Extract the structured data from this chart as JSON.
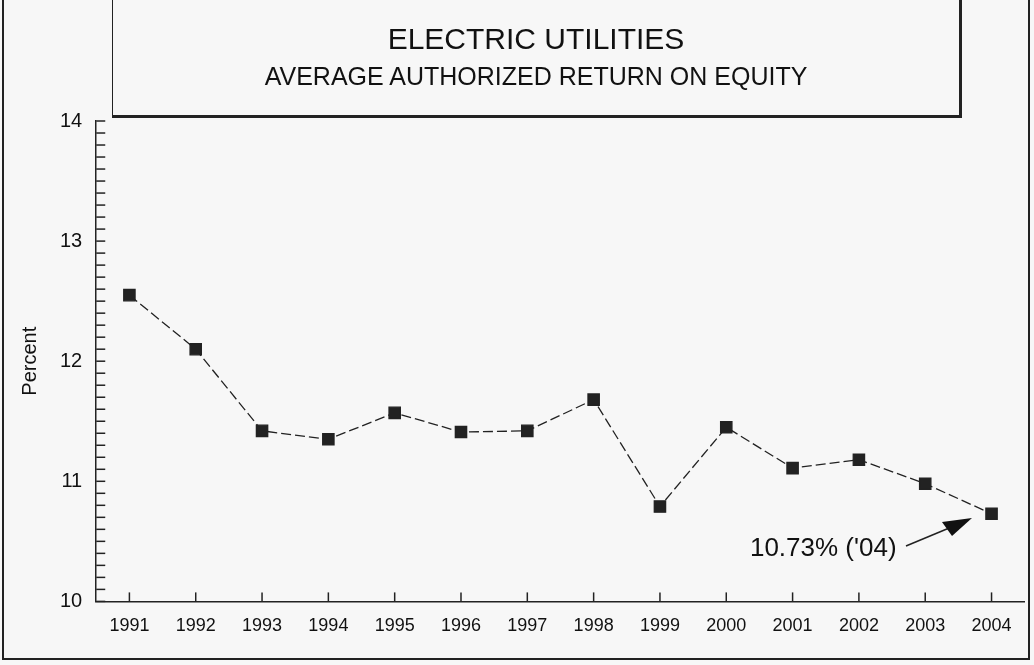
{
  "chart_data": {
    "type": "line",
    "title": "ELECTRIC UTILITIES",
    "subtitle": "AVERAGE AUTHORIZED RETURN ON EQUITY",
    "ylabel": "Percent",
    "categories": [
      "1991",
      "1992",
      "1993",
      "1994",
      "1995",
      "1996",
      "1997",
      "1998",
      "1999",
      "2000",
      "2001",
      "2002",
      "2003",
      "2004"
    ],
    "values": [
      12.55,
      12.1,
      11.42,
      11.35,
      11.57,
      11.41,
      11.42,
      11.68,
      10.79,
      11.45,
      11.11,
      11.18,
      10.98,
      10.73
    ],
    "color": "#222222",
    "marker": "square",
    "line_style": "dashed",
    "grid": false,
    "legend": false,
    "ylim": [
      10,
      14
    ],
    "yticks": [
      10,
      11,
      12,
      13,
      14
    ],
    "annotations": [
      "10.73% ('04)"
    ]
  }
}
